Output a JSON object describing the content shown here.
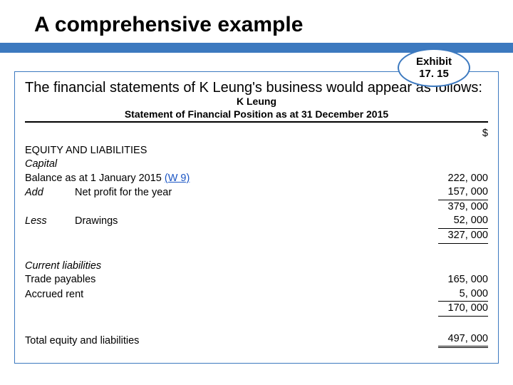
{
  "slide": {
    "title": "A comprehensive example"
  },
  "exhibit": {
    "prefix": "Exhibit",
    "number": "17. 15"
  },
  "intro": "The financial statements of K Leung's business would appear as follows:",
  "statement": {
    "entity": "K Leung",
    "title": "Statement of Financial Position as at 31 December 2015",
    "currency_symbol": "$"
  },
  "equity": {
    "heading": "EQUITY AND LIABILITIES",
    "capital_label": "Capital",
    "opening_balance_label": "Balance as at 1 January 2015 ",
    "opening_balance_ref": "(W 9)",
    "opening_balance": "222, 000",
    "add_label": "Add",
    "net_profit_label": "Net profit for the year",
    "net_profit": "157, 000",
    "subtotal_after_profit": "379, 000",
    "less_label": "Less",
    "drawings_label": "Drawings",
    "drawings": "52, 000",
    "closing_capital": "327, 000"
  },
  "current_liab": {
    "heading": "Current liabilities",
    "trade_payables_label": "Trade payables",
    "trade_payables": "165, 000",
    "accrued_rent_label": "Accrued rent",
    "accrued_rent": "5, 000",
    "subtotal": "170, 000"
  },
  "total": {
    "label": "Total equity and liabilities",
    "amount": "497, 000"
  },
  "colors": {
    "accent": "#3c79bf",
    "link": "#1a55c4",
    "text": "#000000",
    "background": "#ffffff"
  }
}
